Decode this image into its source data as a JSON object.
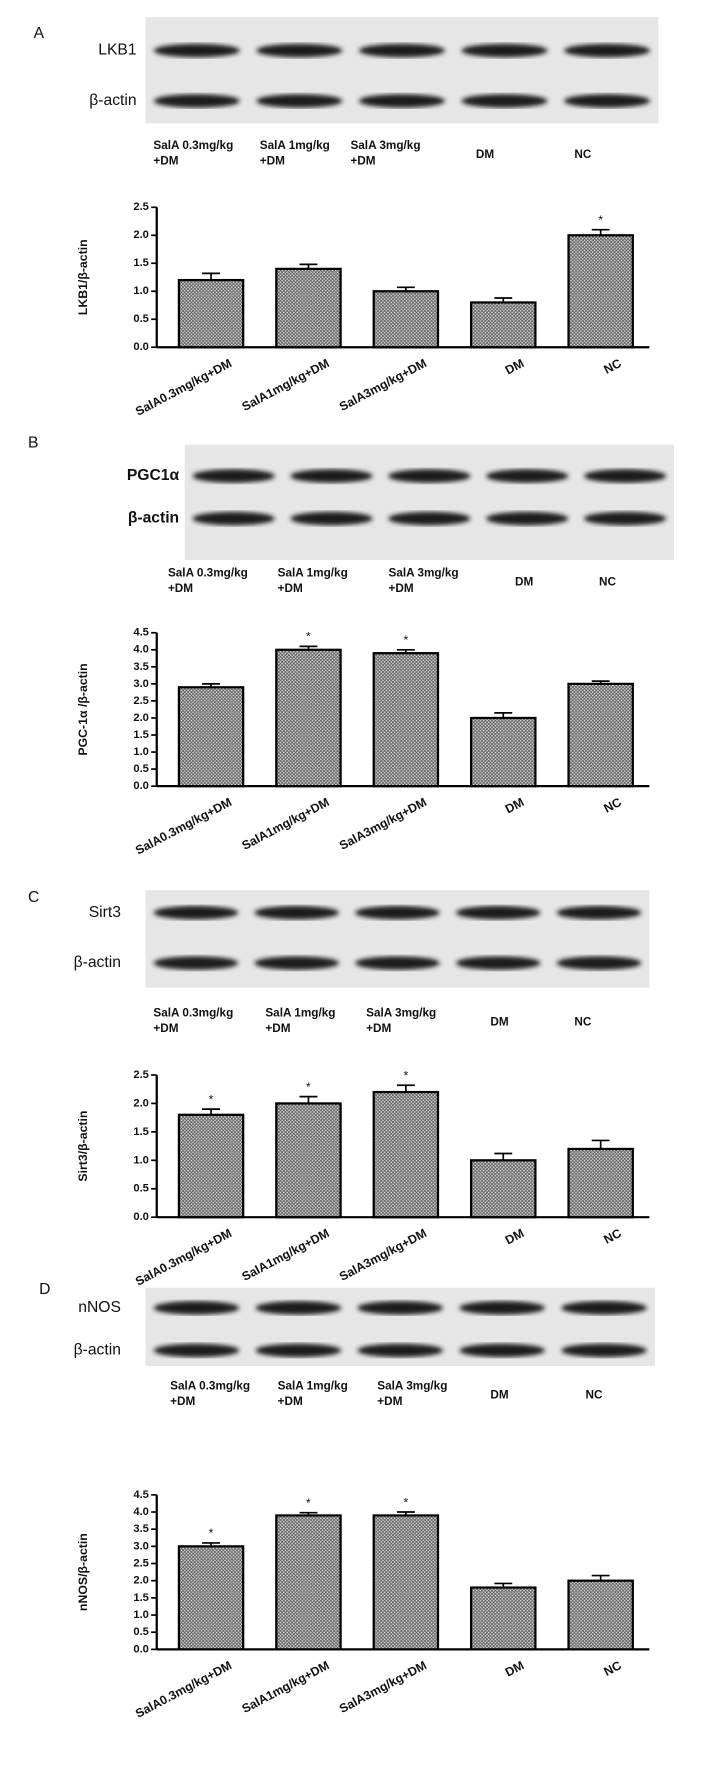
{
  "chart_data": [
    {
      "type": "bar",
      "panel": "A",
      "blot": {
        "rows": [
          "LKB1",
          "β-actin"
        ],
        "lanes": [
          [
            "SalA 0.3mg/kg",
            "+DM"
          ],
          [
            "SalA 1mg/kg",
            "+DM"
          ],
          [
            "SalA 3mg/kg",
            "+DM"
          ],
          [
            "DM"
          ],
          [
            "NC"
          ]
        ]
      },
      "y_label": "LKB1/β-actin",
      "categories": [
        "SalA0.3mg/kg+DM",
        "SalA1mg/kg+DM",
        "SalA3mg/kg+DM",
        "DM",
        "NC"
      ],
      "values": [
        1.2,
        1.4,
        1.0,
        0.8,
        2.0
      ],
      "errors": [
        0.12,
        0.08,
        0.07,
        0.08,
        0.1
      ],
      "annotations": [
        {
          "text": "*",
          "category": "NC"
        }
      ],
      "ylim": [
        0,
        2.5
      ],
      "yticks": [
        {
          "value": 0,
          "label": "0.0"
        },
        0.5,
        {
          "value": 1,
          "label": "1.0"
        },
        1.5,
        {
          "value": 2,
          "label": "2.0"
        },
        2.5
      ]
    },
    {
      "type": "bar",
      "panel": "B",
      "blot": {
        "rows": [
          "PGC1α",
          "β-actin"
        ],
        "lanes": [
          [
            "SalA 0.3mg/kg",
            "+DM"
          ],
          [
            "SalA 1mg/kg",
            "+DM"
          ],
          [
            "SalA 3mg/kg",
            "+DM"
          ],
          [
            "DM"
          ],
          [
            "NC"
          ]
        ]
      },
      "y_label": "PGC-1α /β-actin",
      "categories": [
        "SalA0.3mg/kg+DM",
        "SalA1mg/kg+DM",
        "SalA3mg/kg+DM",
        "DM",
        "NC"
      ],
      "values": [
        2.9,
        4.0,
        3.9,
        2.0,
        3.0
      ],
      "errors": [
        0.1,
        0.1,
        0.1,
        0.15,
        0.08
      ],
      "annotations": [
        {
          "text": "*",
          "category": "SalA1mg/kg+DM"
        },
        {
          "text": "*",
          "category": "SalA3mg/kg+DM"
        }
      ],
      "ylim": [
        0,
        4.5
      ],
      "yticks": [
        {
          "value": 0,
          "label": "0.0"
        },
        0.5,
        {
          "value": 1,
          "label": "1.0"
        },
        1.5,
        {
          "value": 2,
          "label": "2.0"
        },
        2.5,
        {
          "value": 3,
          "label": "3.0"
        },
        3.5,
        {
          "value": 4,
          "label": "4.0"
        },
        4.5
      ]
    },
    {
      "type": "bar",
      "panel": "C",
      "blot": {
        "rows": [
          "Sirt3",
          "β-actin"
        ],
        "lanes": [
          [
            "SalA 0.3mg/kg",
            "+DM"
          ],
          [
            "SalA 1mg/kg",
            "+DM"
          ],
          [
            "SalA 3mg/kg",
            "+DM"
          ],
          [
            "DM"
          ],
          [
            "NC"
          ]
        ]
      },
      "y_label": "Sirt3/β-actin",
      "categories": [
        "SalA0.3mg/kg+DM",
        "SalA1mg/kg+DM",
        "SalA3mg/kg+DM",
        "DM",
        "NC"
      ],
      "values": [
        1.8,
        2.0,
        2.2,
        1.0,
        1.2
      ],
      "errors": [
        0.1,
        0.12,
        0.12,
        0.12,
        0.15
      ],
      "annotations": [
        {
          "text": "*",
          "category": "SalA0.3mg/kg+DM"
        },
        {
          "text": "*",
          "category": "SalA1mg/kg+DM"
        },
        {
          "text": "*",
          "category": "SalA3mg/kg+DM"
        }
      ],
      "ylim": [
        0,
        2.5
      ],
      "yticks": [
        {
          "value": 0,
          "label": "0.0"
        },
        0.5,
        {
          "value": 1,
          "label": "1.0"
        },
        1.5,
        {
          "value": 2,
          "label": "2.0"
        },
        2.5
      ]
    },
    {
      "type": "bar",
      "panel": "D",
      "blot": {
        "rows": [
          "nNOS",
          "β-actin"
        ],
        "lanes": [
          [
            "SalA 0.3mg/kg",
            "+DM"
          ],
          [
            "SalA 1mg/kg",
            "+DM"
          ],
          [
            "SalA  3mg/kg",
            "+DM"
          ],
          [
            "DM"
          ],
          [
            "NC"
          ]
        ]
      },
      "y_label": "nNOS/β-actin",
      "categories": [
        "SalA0.3mg/kg+DM",
        "SalA1mg/kg+DM",
        "SalA3mg/kg+DM",
        "DM",
        "NC"
      ],
      "values": [
        3.0,
        3.9,
        3.9,
        1.8,
        2.0
      ],
      "errors": [
        0.1,
        0.08,
        0.1,
        0.12,
        0.15
      ],
      "annotations": [
        {
          "text": "*",
          "category": "SalA0.3mg/kg+DM"
        },
        {
          "text": "*",
          "category": "SalA1mg/kg+DM"
        },
        {
          "text": "*",
          "category": "SalA3mg/kg+DM"
        }
      ],
      "ylim": [
        0,
        4.5
      ],
      "yticks": [
        {
          "value": 0,
          "label": "0.0"
        },
        0.5,
        {
          "value": 1,
          "label": "1.0"
        },
        1.5,
        {
          "value": 2,
          "label": "2.0"
        },
        2.5,
        {
          "value": 3,
          "label": "3.0"
        },
        3.5,
        {
          "value": 4,
          "label": "4.0"
        },
        4.5
      ]
    }
  ]
}
